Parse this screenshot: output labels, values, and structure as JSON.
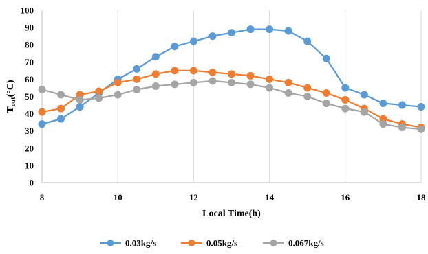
{
  "chart_data": {
    "type": "line",
    "xlabel": "Local Time(h)",
    "ylabel_main": "T",
    "ylabel_sub": "out",
    "ylabel_unit": "(°C)",
    "xlim": [
      8,
      18
    ],
    "ylim": [
      0,
      100
    ],
    "x_ticks": [
      8,
      10,
      12,
      14,
      16,
      18
    ],
    "y_ticks": [
      0,
      10,
      20,
      30,
      40,
      50,
      60,
      70,
      80,
      90,
      100
    ],
    "grid": "vertical",
    "legend_position": "bottom",
    "x": [
      8,
      8.5,
      9,
      9.5,
      10,
      10.5,
      11,
      11.5,
      12,
      12.5,
      13,
      13.5,
      14,
      14.5,
      15,
      15.5,
      16,
      16.5,
      17,
      17.5,
      18
    ],
    "series": [
      {
        "name": "0.03kg/s",
        "color": "#5B9BD5",
        "values": [
          34,
          37,
          44,
          52,
          60,
          66,
          73,
          79,
          82,
          85,
          87,
          89,
          89,
          88,
          82,
          72,
          55,
          51,
          46,
          45,
          44
        ]
      },
      {
        "name": "0.05kg/s",
        "color": "#ED7D31",
        "values": [
          41,
          43,
          51,
          53,
          58,
          60,
          63,
          65,
          65,
          64,
          63,
          62,
          60,
          58,
          55,
          52,
          48,
          43,
          37,
          34,
          32
        ]
      },
      {
        "name": "0.067kg/s",
        "color": "#A5A5A5",
        "values": [
          54,
          51,
          48,
          49,
          51,
          54,
          56,
          57,
          58,
          59,
          58,
          57,
          55,
          52,
          50,
          46,
          43,
          41,
          34,
          32,
          31
        ]
      }
    ]
  }
}
